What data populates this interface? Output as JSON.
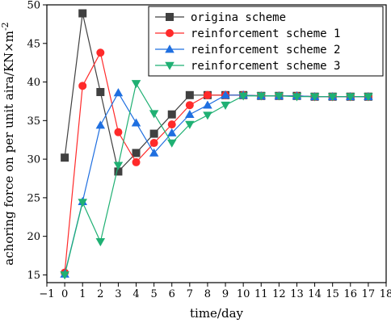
{
  "chart_data": {
    "type": "line",
    "xlabel": "time/day",
    "ylabel": "achoring force on per unit aira/KN×m",
    "ylabel_sup": "-2",
    "xlim": [
      -1,
      18
    ],
    "ylim": [
      14,
      50
    ],
    "x_ticks": [
      -1,
      0,
      1,
      2,
      3,
      4,
      5,
      6,
      7,
      8,
      9,
      10,
      11,
      12,
      13,
      14,
      15,
      16,
      17,
      18
    ],
    "y_ticks": [
      15,
      20,
      25,
      30,
      35,
      40,
      45,
      50
    ],
    "legend_position": "top-right",
    "x": [
      0,
      1,
      2,
      3,
      4,
      5,
      6,
      7,
      8,
      9,
      10,
      11,
      12,
      13,
      14,
      15,
      16,
      17
    ],
    "series": [
      {
        "name": "origina scheme",
        "marker": "square",
        "color": "#404040",
        "values": [
          30.2,
          48.9,
          38.7,
          28.4,
          30.8,
          33.3,
          35.8,
          38.3,
          38.3,
          38.3,
          38.3,
          38.2,
          38.2,
          38.2,
          38.1,
          38.1,
          38.1,
          38.1
        ]
      },
      {
        "name": "reinforcement scheme 1",
        "marker": "circle",
        "color": "#ff2a2a",
        "values": [
          15.3,
          39.5,
          43.8,
          33.5,
          29.6,
          32.1,
          34.5,
          37.0,
          38.3,
          38.3,
          38.3,
          38.2,
          38.2,
          38.2,
          38.1,
          38.1,
          38.1,
          38.1
        ]
      },
      {
        "name": "reinforcement scheme 2",
        "marker": "triangle-up",
        "color": "#1f6fe0",
        "values": [
          15.1,
          24.5,
          34.4,
          38.6,
          34.7,
          30.8,
          33.4,
          35.8,
          37.0,
          38.3,
          38.3,
          38.2,
          38.2,
          38.2,
          38.1,
          38.1,
          38.1,
          38.1
        ]
      },
      {
        "name": "reinforcement scheme 3",
        "marker": "triangle-down",
        "color": "#1fb073",
        "values": [
          15.0,
          24.4,
          19.3,
          29.2,
          39.8,
          35.9,
          32.1,
          34.5,
          35.7,
          37.0,
          38.2,
          38.2,
          38.2,
          38.1,
          38.1,
          38.1,
          38.1,
          38.1
        ]
      }
    ]
  }
}
